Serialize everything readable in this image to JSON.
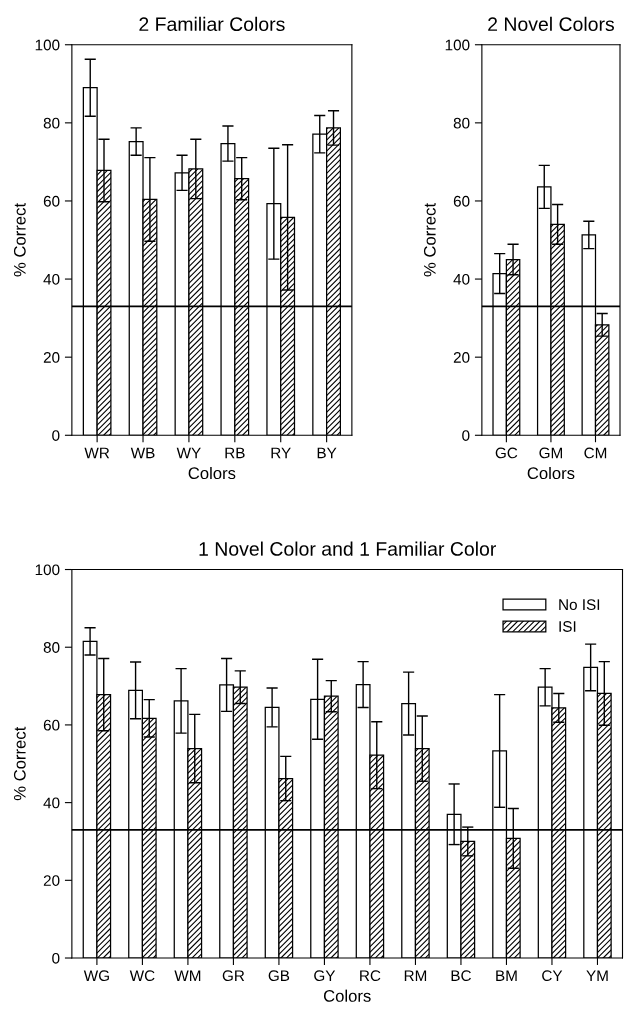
{
  "chart_data": [
    {
      "type": "bar",
      "title": "2 Familiar Colors",
      "xlabel": "Colors",
      "ylabel": "% Correct",
      "categories": [
        "WR",
        "WB",
        "WY",
        "RB",
        "RY",
        "BY"
      ],
      "series": [
        {
          "color": "#ffffff",
          "values": [
            89,
            75.2,
            67.2,
            74.7,
            59.3,
            77.1
          ],
          "errors": [
            7.3,
            3.5,
            4.5,
            4.5,
            14.2,
            4.8
          ]
        },
        {
          "color": "#000000",
          "values": [
            67.8,
            60.4,
            68.2,
            65.7,
            55.8,
            78.7
          ],
          "errors": [
            8,
            10.7,
            7.6,
            5.4,
            18.6,
            4.4
          ]
        }
      ],
      "ylim": [
        0,
        100
      ],
      "yticks": [
        0,
        20,
        40,
        60,
        80,
        100
      ],
      "grid": false,
      "legend": false,
      "ref_lines": [
        {
          "axis": "y",
          "value": 33,
          "color": "#000000"
        }
      ]
    },
    {
      "type": "bar",
      "title": "2 Novel Colors",
      "xlabel": "Colors",
      "ylabel": "% Correct",
      "categories": [
        "GC",
        "GM",
        "CM"
      ],
      "series": [
        {
          "color": "#ffffff",
          "values": [
            41.4,
            63.6,
            51.3
          ],
          "errors": [
            5.1,
            5.5,
            3.5
          ]
        },
        {
          "color": "#000000",
          "values": [
            45.0,
            54.0,
            28.3
          ],
          "errors": [
            3.9,
            5.1,
            2.9
          ]
        }
      ],
      "ylim": [
        0,
        100
      ],
      "yticks": [
        0,
        20,
        40,
        60,
        80,
        100
      ],
      "grid": false,
      "legend": false,
      "ref_lines": [
        {
          "axis": "y",
          "value": 33,
          "color": "#000000"
        }
      ]
    },
    {
      "type": "bar",
      "title": "1 Novel Color and 1 Familiar Color",
      "xlabel": "Colors",
      "ylabel": "% Correct",
      "categories": [
        "WG",
        "WC",
        "WM",
        "GR",
        "GB",
        "GY",
        "RC",
        "RM",
        "BC",
        "BM",
        "CY",
        "YM"
      ],
      "series": [
        {
          "name": "No ISI",
          "color": "#ffffff",
          "values": [
            81.5,
            68.9,
            66.2,
            70.3,
            64.5,
            66.6,
            70.4,
            65.5,
            37.0,
            53.3,
            69.7,
            74.8
          ],
          "errors": [
            3.5,
            7.3,
            8.3,
            6.8,
            5.0,
            10.3,
            5.9,
            8.1,
            7.8,
            14.5,
            4.8,
            6.0
          ]
        },
        {
          "name": "ISI",
          "color": "#000000",
          "values": [
            67.8,
            61.7,
            53.9,
            69.7,
            46.2,
            67.4,
            52.2,
            53.9,
            30.0,
            30.8,
            64.4,
            68.1
          ],
          "errors": [
            9.3,
            4.8,
            8.8,
            4.2,
            5.7,
            4.0,
            8.6,
            8.4,
            3.7,
            7.7,
            3.7,
            8.2
          ]
        }
      ],
      "ylim": [
        0,
        100
      ],
      "yticks": [
        0,
        20,
        40,
        60,
        80,
        100
      ],
      "grid": false,
      "legend": "top right",
      "ref_lines": [
        {
          "axis": "y",
          "value": 33,
          "color": "#000000"
        }
      ]
    }
  ]
}
